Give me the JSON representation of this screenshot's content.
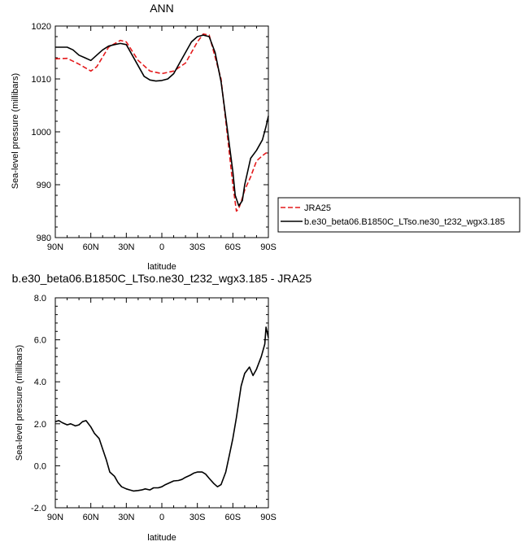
{
  "chart_data": [
    {
      "type": "line",
      "title": "ANN",
      "xlabel": "latitude",
      "ylabel": "Sea-level pressure (millibars)",
      "xlim": [
        90,
        -90
      ],
      "ylim": [
        980,
        1020
      ],
      "xtick_values": [
        90,
        60,
        30,
        0,
        -30,
        -60,
        -90
      ],
      "xtick_labels": [
        "90N",
        "60N",
        "30N",
        "0",
        "30S",
        "60S",
        "90S"
      ],
      "ytick_values": [
        980,
        990,
        1000,
        1010,
        1020
      ],
      "ytick_labels": [
        "980",
        "990",
        "1000",
        "1010",
        "1020"
      ],
      "legend_position": "right, below plot",
      "series": [
        {
          "name": "JRA25",
          "color": "#e41a1c",
          "dash": "dashed",
          "x": [
            90,
            80,
            70,
            60,
            55,
            45,
            35,
            30,
            20,
            10,
            0,
            -10,
            -20,
            -30,
            -35,
            -40,
            -50,
            -55,
            -60,
            -63,
            -65,
            -68,
            -70,
            -75,
            -80,
            -85,
            -88,
            -90
          ],
          "y": [
            1013.8,
            1013.9,
            1012.8,
            1011.5,
            1012.3,
            1016.0,
            1017.3,
            1017.0,
            1013.5,
            1011.5,
            1011.0,
            1011.5,
            1013.0,
            1017.0,
            1018.5,
            1018.3,
            1010.0,
            1000.0,
            990.0,
            985.0,
            985.5,
            987.5,
            989.0,
            991.5,
            994.5,
            995.5,
            996.0,
            996.0
          ]
        },
        {
          "name": "b.e30_beta06.B1850C_LTso.ne30_t232_wgx3.185",
          "color": "#000000",
          "dash": "solid",
          "x": [
            90,
            85,
            80,
            75,
            70,
            65,
            60,
            55,
            50,
            45,
            40,
            35,
            30,
            25,
            20,
            15,
            10,
            5,
            0,
            -5,
            -10,
            -15,
            -20,
            -25,
            -30,
            -35,
            -40,
            -45,
            -50,
            -55,
            -60,
            -62,
            -65,
            -68,
            -70,
            -75,
            -80,
            -85,
            -88,
            -90
          ],
          "y": [
            1016.0,
            1016.0,
            1016.0,
            1015.5,
            1014.5,
            1014.0,
            1013.5,
            1014.5,
            1015.5,
            1016.2,
            1016.5,
            1016.7,
            1016.5,
            1014.5,
            1012.5,
            1010.5,
            1009.8,
            1009.6,
            1009.7,
            1010.0,
            1011.0,
            1013.0,
            1015.0,
            1017.0,
            1018.0,
            1018.3,
            1018.0,
            1015.0,
            1009.5,
            1001.0,
            992.5,
            988.0,
            986.0,
            987.0,
            990.0,
            995.0,
            996.5,
            998.5,
            1001.0,
            1003.0
          ]
        }
      ]
    },
    {
      "type": "line",
      "title": "b.e30_beta06.B1850C_LTso.ne30_t232_wgx3.185 - JRA25",
      "xlabel": "latitude",
      "ylabel": "Sea-level pressure (millibars)",
      "xlim": [
        90,
        -90
      ],
      "ylim": [
        -2,
        8
      ],
      "xtick_values": [
        90,
        60,
        30,
        0,
        -30,
        -60,
        -90
      ],
      "xtick_labels": [
        "90N",
        "60N",
        "30N",
        "0",
        "30S",
        "60S",
        "90S"
      ],
      "ytick_values": [
        -2,
        0,
        2,
        4,
        6,
        8
      ],
      "ytick_labels": [
        "-2.0",
        "0.0",
        "2.0",
        "4.0",
        "6.0",
        "8.0"
      ],
      "series": [
        {
          "color": "#000000",
          "dash": "solid",
          "x": [
            90,
            87,
            84,
            80,
            77,
            73,
            70,
            67,
            64,
            60,
            57,
            53,
            50,
            47,
            44,
            40,
            37,
            34,
            30,
            27,
            24,
            20,
            17,
            14,
            10,
            7,
            3,
            0,
            -3,
            -7,
            -10,
            -14,
            -17,
            -20,
            -24,
            -27,
            -30,
            -34,
            -37,
            -40,
            -44,
            -47,
            -50,
            -54,
            -57,
            -60,
            -63,
            -67,
            -70,
            -74,
            -77,
            -80,
            -84,
            -87,
            -88,
            -90
          ],
          "y": [
            2.1,
            2.15,
            2.05,
            1.95,
            2.0,
            1.9,
            1.95,
            2.1,
            2.15,
            1.85,
            1.55,
            1.3,
            0.8,
            0.3,
            -0.3,
            -0.5,
            -0.8,
            -1.0,
            -1.1,
            -1.15,
            -1.2,
            -1.18,
            -1.15,
            -1.1,
            -1.15,
            -1.05,
            -1.05,
            -1.0,
            -0.9,
            -0.8,
            -0.72,
            -0.7,
            -0.65,
            -0.55,
            -0.45,
            -0.35,
            -0.3,
            -0.3,
            -0.4,
            -0.6,
            -0.85,
            -1.0,
            -0.9,
            -0.3,
            0.5,
            1.3,
            2.3,
            3.8,
            4.4,
            4.7,
            4.3,
            4.6,
            5.2,
            5.8,
            6.6,
            6.1
          ]
        }
      ]
    }
  ]
}
